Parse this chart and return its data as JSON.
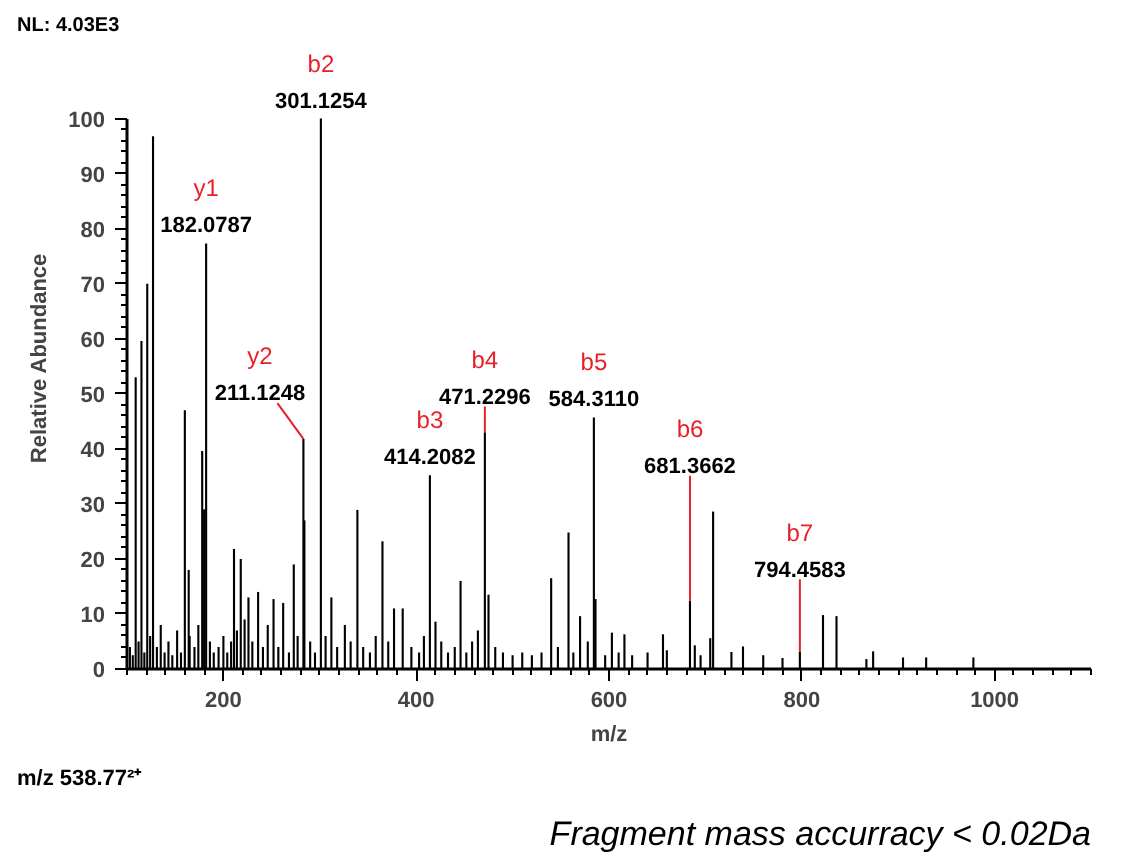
{
  "chart_data": {
    "type": "bar",
    "xlabel": "m/z",
    "ylabel": "Relative Abundance",
    "color": "#000000",
    "x": [
      103,
      106,
      109,
      112,
      115,
      118,
      121,
      124,
      127,
      131,
      135,
      139,
      143,
      147,
      152,
      156,
      160,
      164,
      165,
      170,
      174,
      178,
      180,
      182.0787,
      186,
      190,
      195,
      200,
      204,
      208,
      211,
      214,
      218,
      222,
      226,
      230,
      236,
      241,
      246,
      252,
      257,
      262,
      268,
      273,
      277,
      283,
      284,
      290,
      295,
      301.1254,
      306,
      312,
      318,
      326,
      332,
      339,
      345,
      352,
      358,
      365,
      371,
      377,
      386,
      395,
      403,
      408,
      414.2082,
      420,
      426,
      433,
      440,
      446,
      452,
      458,
      464,
      471.2296,
      475,
      482,
      490,
      500,
      510,
      520,
      530,
      540,
      547,
      558,
      563,
      570,
      578,
      584.311,
      586,
      596,
      603,
      610,
      616,
      624,
      640,
      656,
      660,
      684,
      689,
      695,
      705,
      708,
      727,
      739,
      760,
      780,
      798,
      822,
      836,
      867,
      874,
      905,
      929,
      978
    ],
    "values": [
      4,
      2.5,
      53,
      5,
      59.6,
      3,
      70,
      6,
      96.8,
      4,
      8,
      3,
      5,
      2.5,
      7,
      3,
      47,
      18,
      6,
      4,
      8,
      39.6,
      29,
      77.3,
      5,
      3,
      4,
      6,
      3,
      5,
      21.8,
      7,
      20,
      9,
      13,
      5,
      14,
      4,
      8,
      12.7,
      4,
      12,
      3,
      19,
      6,
      41.8,
      27,
      5,
      3,
      100,
      6,
      13,
      4,
      8,
      5,
      28.9,
      4,
      3,
      6,
      23.2,
      5,
      11,
      11,
      4,
      3,
      6,
      35.2,
      8.6,
      5,
      3,
      4,
      16,
      3,
      5,
      7,
      43.0,
      13.5,
      4,
      3,
      2.5,
      3,
      2.5,
      3,
      16.5,
      4,
      24.8,
      3,
      9.6,
      5,
      45.7,
      12.7,
      2.5,
      6.6,
      3,
      6.3,
      2.5,
      3,
      6.3,
      3.4,
      12.4,
      4.3,
      2.5,
      5.6,
      28.6,
      3.1,
      4.1,
      2.5,
      2,
      3.2,
      9.8,
      9.6,
      1.8,
      3.2,
      2.1,
      2.1,
      2.1
    ],
    "xlim": [
      100,
      1100
    ],
    "xticks": [
      200,
      400,
      600,
      800,
      1000
    ],
    "ylim": [
      0,
      100
    ],
    "yticks": [
      0,
      10,
      20,
      30,
      40,
      50,
      60,
      70,
      80,
      90,
      100
    ],
    "grid": false,
    "annotations": [
      {
        "text": "y1\n182.0787",
        "x": 182.0787,
        "y": 77.3
      },
      {
        "text": "b2\n301.1254",
        "x": 301.1254,
        "y": 100
      },
      {
        "text": "y2\n211.1248",
        "x": 283,
        "y": 41.8
      },
      {
        "text": "b3\n414.2082",
        "x": 414.2082,
        "y": 35.2
      },
      {
        "text": "b4\n471.2296",
        "x": 471.2296,
        "y": 43.0
      },
      {
        "text": "b5\n584.3110",
        "x": 584.311,
        "y": 45.7
      },
      {
        "text": "b6\n681.3662",
        "x": 684,
        "y": 12.4
      },
      {
        "text": "b7\n794.4583",
        "x": 798,
        "y": 3.2
      },
      "NL: 4.03E3",
      "m/z 538.77²⁺",
      "Fragment mass accurracy < 0.02Da"
    ]
  }
}
